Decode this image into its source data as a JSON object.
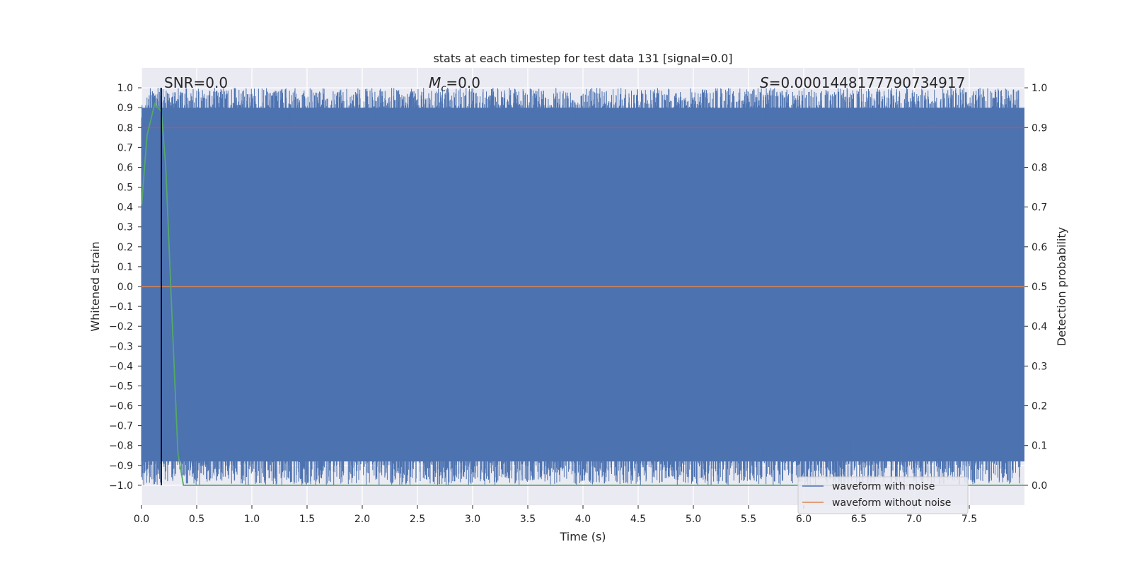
{
  "chart_data": {
    "type": "line",
    "title": "stats at each timestep for test data 131 [signal=0.0]",
    "xlabel": "Time (s)",
    "ylabel_left": "Whitened strain",
    "ylabel_right": "Detection probability",
    "xlim": [
      0.0,
      8.0
    ],
    "ylim_left": [
      -1.1,
      1.1
    ],
    "ylim_right": [
      -0.05,
      1.05
    ],
    "x_ticks": [
      "0.0",
      "0.5",
      "1.0",
      "1.5",
      "2.0",
      "2.5",
      "3.0",
      "3.5",
      "4.0",
      "4.5",
      "5.0",
      "5.5",
      "6.0",
      "6.5",
      "7.0",
      "7.5"
    ],
    "y_left_ticks": [
      "1.0",
      "0.9",
      "0.8",
      "0.7",
      "0.6",
      "0.5",
      "0.4",
      "0.3",
      "0.2",
      "0.1",
      "0.0",
      "−0.1",
      "−0.2",
      "−0.3",
      "−0.4",
      "−0.5",
      "−0.6",
      "−0.7",
      "−0.8",
      "−0.9",
      "−1.0"
    ],
    "y_right_ticks": [
      "1.0",
      "0.9",
      "0.8",
      "0.7",
      "0.6",
      "0.5",
      "0.4",
      "0.3",
      "0.2",
      "0.1",
      "0.0"
    ],
    "grid": true,
    "legend_position": "lower-right",
    "annotations": {
      "snr": "SNR=0.0",
      "mc_symbol": "M",
      "mc_sub": "c",
      "mc_rest": "=0.0",
      "s_symbol": "S",
      "s_rest": "=0.0001448177790734917"
    },
    "series": [
      {
        "name": "waveform with noise",
        "color": "#4c72b0",
        "kind": "dense noise filling about −1.0 to 1.0 over 0–8 s"
      },
      {
        "name": "waveform without noise",
        "color": "#dd8452",
        "x": [
          0.0,
          8.0
        ],
        "y": [
          0.0,
          0.0
        ]
      }
    ],
    "detection_probability": {
      "color": "#55a868",
      "x": [
        0.0,
        0.05,
        0.12,
        0.18,
        0.22,
        0.28,
        0.33,
        0.38,
        0.45,
        8.0
      ],
      "y": [
        0.7,
        0.88,
        0.96,
        0.94,
        0.8,
        0.4,
        0.08,
        0.0,
        0.0,
        0.0
      ]
    },
    "threshold": {
      "color": "#c44e52",
      "value": 0.9
    },
    "marker_line": {
      "color": "#000000",
      "x": 0.18
    }
  }
}
